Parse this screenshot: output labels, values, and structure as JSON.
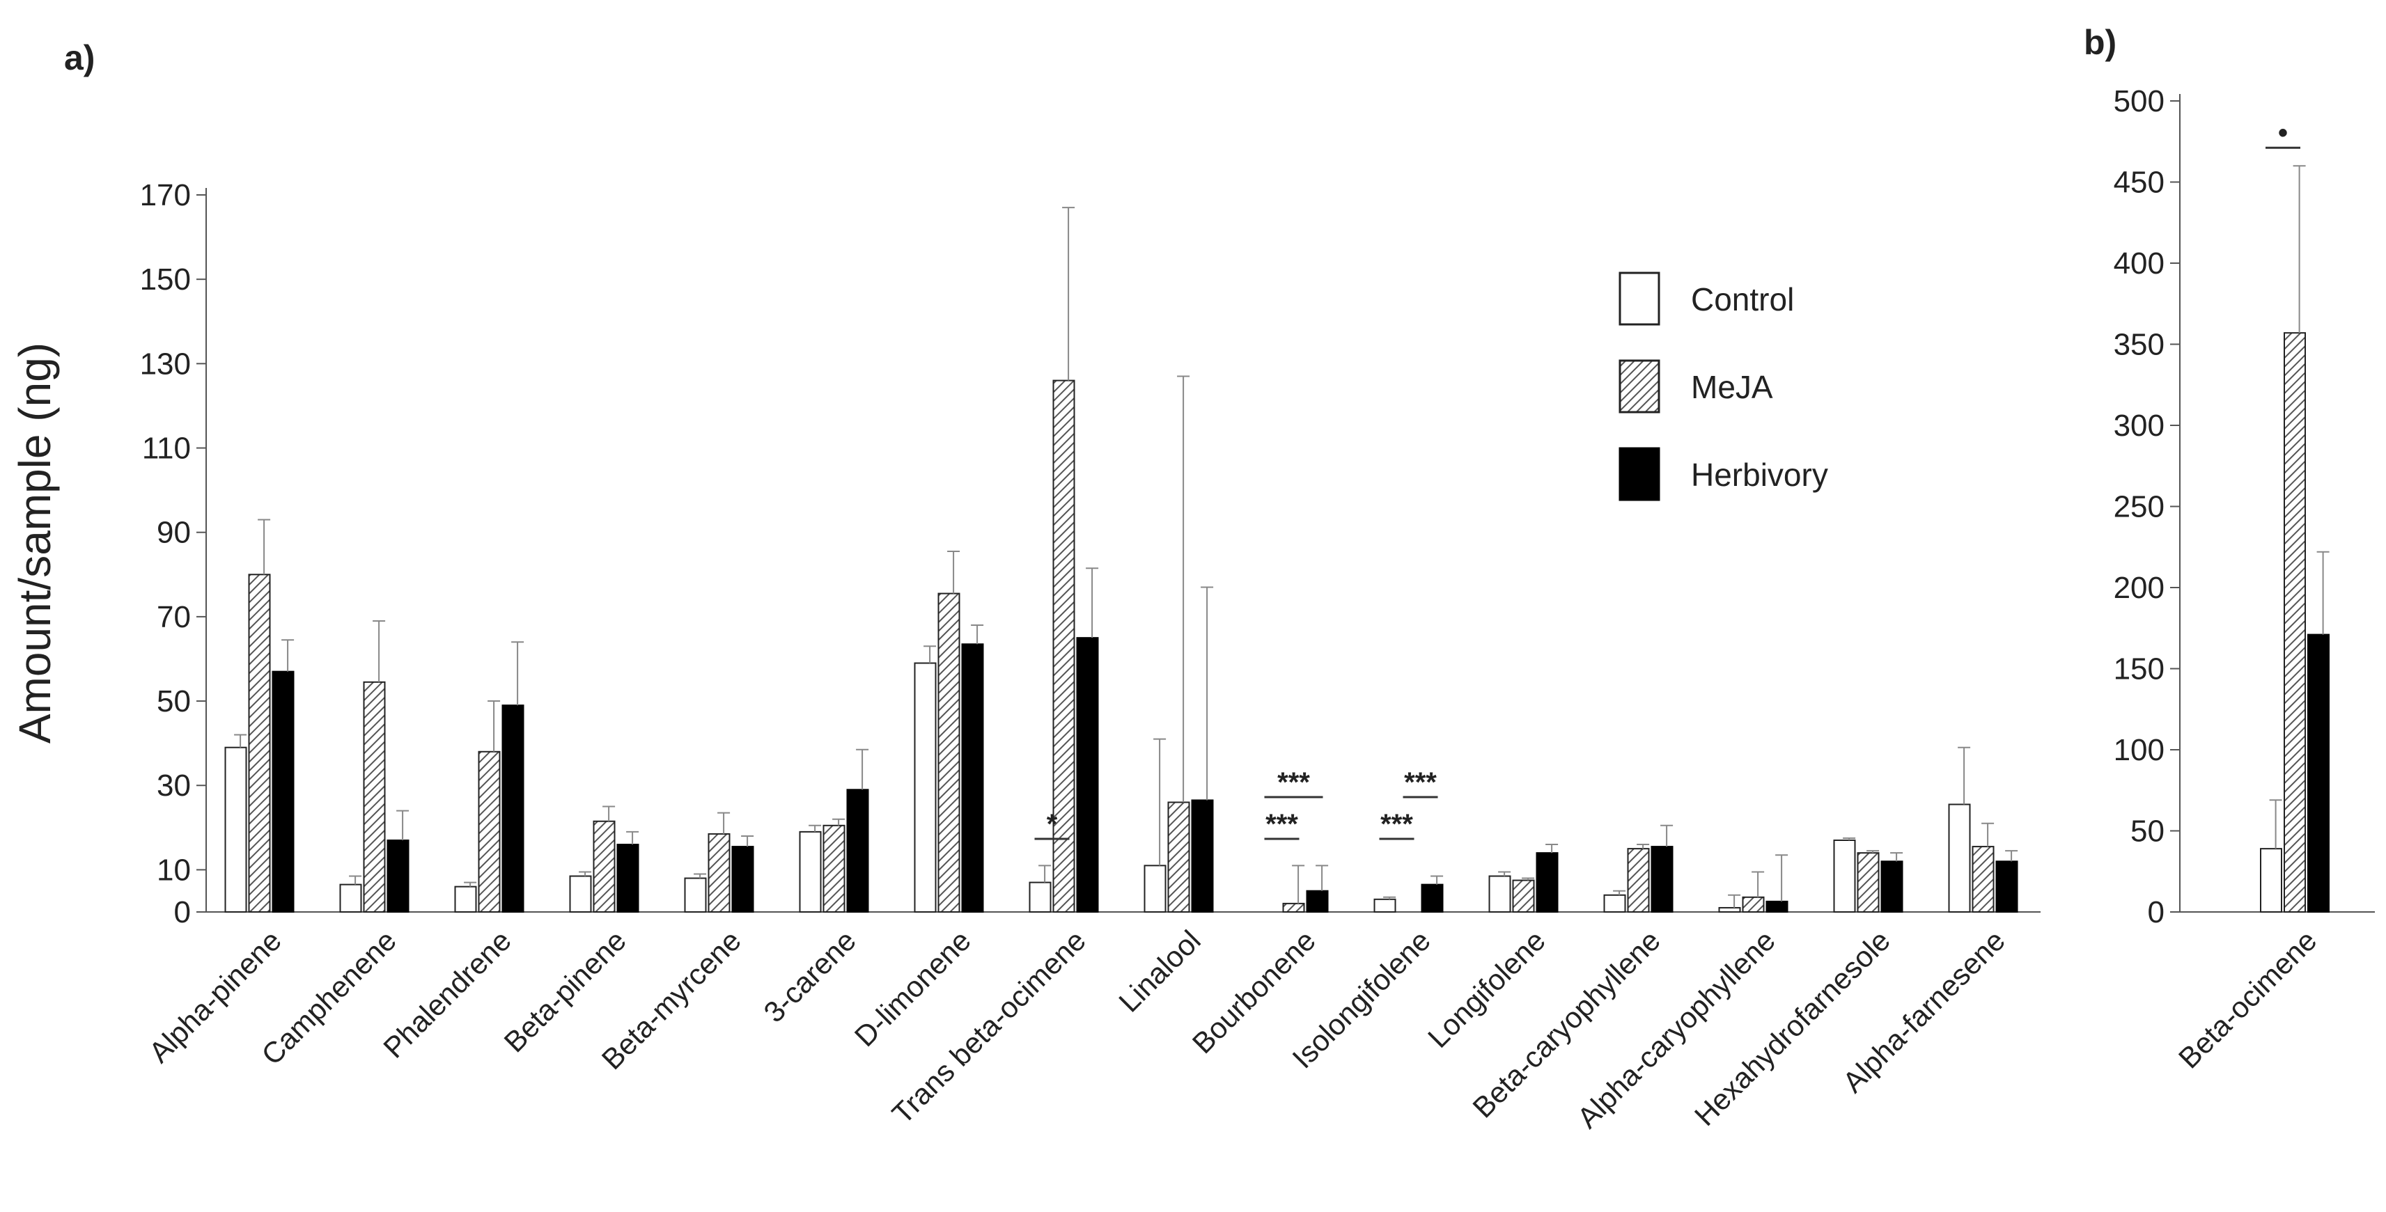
{
  "colors": {
    "control": "#ffffff",
    "meja_hatch": "#666666",
    "herbivory": "#000000",
    "axis": "#666666",
    "error": "#888888"
  },
  "chart_data": [
    {
      "panel": "a)",
      "type": "bar",
      "ylabel": "Amount/sample (ng)",
      "ylim": [
        0,
        170
      ],
      "yticks": [
        0,
        10,
        30,
        50,
        70,
        90,
        110,
        130,
        150,
        170
      ],
      "categories": [
        "Alpha-pinene",
        "Camphenene",
        "Phalendrene",
        "Beta-pinene",
        "Beta-myrcene",
        "3-carene",
        "D-limonene",
        "Trans beta-ocimene",
        "Linalool",
        "Bourbonene",
        "Isolongifolene",
        "Longifolene",
        "Beta-caryophyllene",
        "Alpha-caryophyllene",
        "Hexahydrofarnesole",
        "Alpha-farnesene"
      ],
      "series": [
        {
          "name": "Control",
          "values": [
            39,
            6.5,
            6,
            8.5,
            8,
            19,
            59,
            7,
            11,
            0,
            3,
            8.5,
            4,
            1,
            17,
            25.5
          ],
          "errors": [
            3,
            2,
            1,
            1,
            1,
            1.5,
            4,
            4,
            30,
            0,
            0.5,
            1,
            1,
            3,
            0.5,
            13.5
          ]
        },
        {
          "name": "MeJA",
          "values": [
            80,
            54.5,
            38,
            21.5,
            18.5,
            20.5,
            75.5,
            126,
            26,
            2,
            0,
            7.5,
            15,
            3.5,
            14,
            15.5
          ],
          "errors": [
            13,
            14.5,
            12,
            3.5,
            5,
            1.5,
            10,
            41,
            101,
            9,
            0,
            0.5,
            1,
            6,
            0.5,
            5.5
          ]
        },
        {
          "name": "Herbivory",
          "values": [
            57,
            17,
            49,
            16,
            15.5,
            29,
            63.5,
            65,
            26.5,
            5,
            6.5,
            14,
            15.5,
            2.5,
            12,
            12
          ],
          "errors": [
            7.5,
            7,
            15,
            3,
            2.5,
            9.5,
            4.5,
            16.5,
            50.5,
            6,
            2,
            2,
            5,
            11,
            2,
            2.5
          ]
        }
      ],
      "legend": [
        "Control",
        "MeJA",
        "Herbivory"
      ],
      "annotations": [
        {
          "category": "Trans beta-ocimene",
          "text": "*",
          "between": [
            "Control",
            "MeJA"
          ]
        },
        {
          "category": "Bourbonene",
          "text": "***",
          "between": [
            "Control",
            "MeJA"
          ]
        },
        {
          "category": "Bourbonene",
          "text": "***",
          "between": [
            "Control",
            "Herbivory"
          ]
        },
        {
          "category": "Isolongifolene",
          "text": "***",
          "between": [
            "Control",
            "MeJA"
          ]
        },
        {
          "category": "Isolongifolene",
          "text": "***",
          "between": [
            "MeJA",
            "Herbivory"
          ]
        }
      ]
    },
    {
      "panel": "b)",
      "type": "bar",
      "ylabel": "",
      "ylim": [
        0,
        500
      ],
      "yticks": [
        0,
        50,
        100,
        150,
        200,
        250,
        300,
        350,
        400,
        450,
        500
      ],
      "categories": [
        "Beta-ocimene"
      ],
      "series": [
        {
          "name": "Control",
          "values": [
            39
          ],
          "errors": [
            30
          ]
        },
        {
          "name": "MeJA",
          "values": [
            357
          ],
          "errors": [
            103
          ]
        },
        {
          "name": "Herbivory",
          "values": [
            171
          ],
          "errors": [
            51
          ]
        }
      ],
      "annotations": [
        {
          "category": "Beta-ocimene",
          "text": "•",
          "between": [
            "Control",
            "MeJA"
          ]
        }
      ]
    }
  ]
}
